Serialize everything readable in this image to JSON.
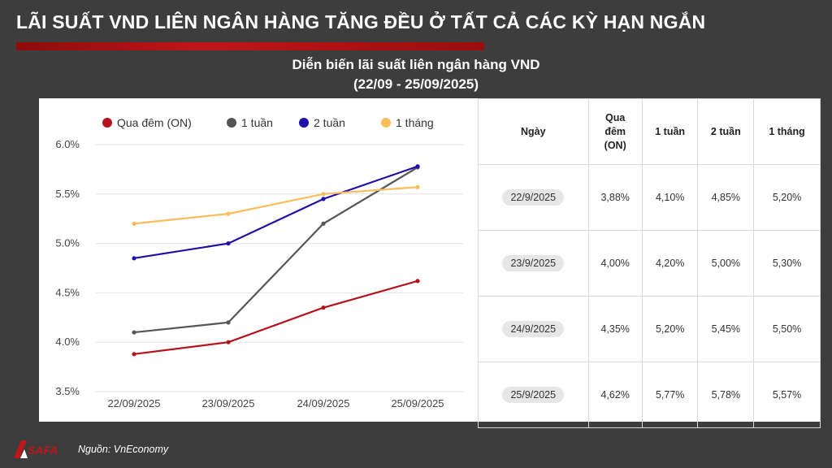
{
  "header": {
    "headline": "LÃI SUẤT VND LIÊN NGÂN HÀNG TĂNG ĐỀU Ở TẤT CẢ CÁC KỲ HẠN NGẮN",
    "subtitle_line1": "Diễn biến lãi suất liên ngân hàng VND",
    "subtitle_line2": "(22/09 - 25/09/2025)"
  },
  "chart_data": {
    "type": "line",
    "title": "Diễn biến lãi suất liên ngân hàng VND",
    "subtitle": "(22/09 - 25/09/2025)",
    "categories": [
      "22/09/2025",
      "23/09/2025",
      "24/09/2025",
      "25/09/2025"
    ],
    "y_ticks": [
      "6.0%",
      "5.5%",
      "5.0%",
      "4.5%",
      "4.0%",
      "3.5%"
    ],
    "ylim": [
      3.5,
      6.0
    ],
    "grid": "horizontal",
    "legend_position": "top",
    "series": [
      {
        "name": "Qua đêm (ON)",
        "color": "#b5121b",
        "values": [
          3.88,
          4.0,
          4.35,
          4.62
        ]
      },
      {
        "name": "1 tuần",
        "color": "#555555",
        "values": [
          4.1,
          4.2,
          5.2,
          5.77
        ]
      },
      {
        "name": "2 tuần",
        "color": "#1f0fa8",
        "values": [
          4.85,
          5.0,
          5.45,
          5.78
        ]
      },
      {
        "name": "1 tháng",
        "color": "#f9bd5a",
        "values": [
          5.2,
          5.3,
          5.5,
          5.57
        ]
      }
    ]
  },
  "table": {
    "headers": [
      "Ngày",
      "Qua\nđêm\n(ON)",
      "1 tuần",
      "2 tuần",
      "1 tháng"
    ],
    "rows": [
      [
        "22/9/2025",
        "3,88%",
        "4,10%",
        "4,85%",
        "5,20%"
      ],
      [
        "23/9/2025",
        "4,00%",
        "4,20%",
        "5,00%",
        "5,30%"
      ],
      [
        "24/9/2025",
        "4,35%",
        "5,20%",
        "5,45%",
        "5,50%"
      ],
      [
        "25/9/2025",
        "4,62%",
        "5,77%",
        "5,78%",
        "5,57%"
      ]
    ]
  },
  "footer": {
    "logo_text": "SAFA",
    "source": "Nguồn: VnEconomy"
  },
  "colors": {
    "background": "#3d3d3d",
    "accent_red": "#c0161a"
  }
}
